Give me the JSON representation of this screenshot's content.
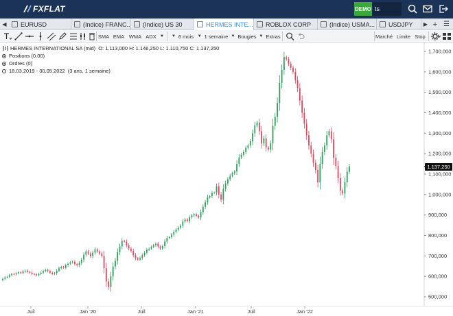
{
  "header": {
    "logo": "FXFLAT",
    "demo_badge": "DEMO",
    "search_value": "ts",
    "icons": [
      "search-icon",
      "mail-icon",
      "logout-icon"
    ]
  },
  "tabs": {
    "items": [
      {
        "label": "EURUSD",
        "active": false
      },
      {
        "label": "(Indice) FRANC...",
        "active": false
      },
      {
        "label": "(Indice) US 30",
        "active": false
      },
      {
        "label": "HERMES INTE...",
        "active": true
      },
      {
        "label": "ROBLOX CORP",
        "active": false
      },
      {
        "label": "(Indice) USMA...",
        "active": false
      },
      {
        "label": "USDJPY",
        "active": false
      }
    ],
    "nav_prev": "◀",
    "nav_next": "▶",
    "add": "+",
    "menu": "☰"
  },
  "toolbar": {
    "indicators": [
      "SMA",
      "EMA",
      "WMA",
      "ADX"
    ],
    "period": "6 mois",
    "interval": "1 semaine",
    "chart_type": "Bougies",
    "extras": "Extras",
    "orders": [
      "Marché",
      "Limite",
      "Stop"
    ]
  },
  "info": {
    "instrument": "HERMES INTERNATIONAL SA (mid)",
    "ohlc": "O: 1.113,000  H: 1.146,250  L: 1.110,750  C: 1.137,250",
    "positions": "Positions (0.00)",
    "orders": "Ordres (0)",
    "range": "18.03.2019 - 30.05.2022",
    "range_note": "(3 ans, 1 semaine)"
  },
  "current_price": "1.137,250",
  "colors": {
    "header_bg": "#1a3356",
    "demo_green": "#3aa83a",
    "active_tab": "#3d8fd6",
    "bull": "#2e9e5b",
    "bear": "#e0455f"
  },
  "chart_data": {
    "type": "candlestick",
    "x_start": "2019-03-18",
    "x_end": "2022-05-30",
    "interval": "1 semaine",
    "ylim": [
      500000,
      1700000
    ],
    "y_ticks": [
      "500,000",
      "600,000",
      "700,000",
      "800,000",
      "900,000",
      "1,000,000",
      "1,100,000",
      "1,200,000",
      "1,300,000",
      "1,400,000",
      "1,500,000",
      "1,600,000",
      "1,700,000"
    ],
    "x_ticks": [
      "Juil",
      "Jan '20",
      "Juil",
      "Jan '21",
      "Juil",
      "Jan '22"
    ],
    "closes": [
      588000,
      595000,
      598000,
      606000,
      612000,
      610000,
      615000,
      620000,
      616000,
      624000,
      628000,
      622000,
      618000,
      612000,
      610000,
      606000,
      612000,
      618000,
      626000,
      632000,
      626000,
      618000,
      612000,
      616000,
      628000,
      640000,
      646000,
      642000,
      654000,
      662000,
      668000,
      672000,
      660000,
      654000,
      666000,
      682000,
      706000,
      722000,
      712000,
      698000,
      716000,
      732000,
      722000,
      712000,
      700000,
      640000,
      575000,
      548000,
      600000,
      648000,
      676000,
      718000,
      746000,
      774000,
      770000,
      752000,
      736000,
      724000,
      704000,
      688000,
      682000,
      690000,
      704000,
      716000,
      730000,
      736000,
      744000,
      752000,
      760000,
      746000,
      736000,
      748000,
      770000,
      788000,
      792000,
      804000,
      818000,
      828000,
      838000,
      848000,
      868000,
      878000,
      870000,
      888000,
      898000,
      904000,
      896000,
      888000,
      914000,
      940000,
      962000,
      986000,
      992000,
      1008000,
      1010000,
      1040000,
      1000000,
      975000,
      1028000,
      1055000,
      1075000,
      1092000,
      1104000,
      1113000,
      1150000,
      1182000,
      1195000,
      1208000,
      1228000,
      1240000,
      1260000,
      1300000,
      1338000,
      1352000,
      1310000,
      1250000,
      1275000,
      1230000,
      1220000,
      1250000,
      1336000,
      1380000,
      1448000,
      1546000,
      1610000,
      1672000,
      1662000,
      1640000,
      1620000,
      1600000,
      1560000,
      1520000,
      1460000,
      1400000,
      1346000,
      1290000,
      1240000,
      1200000,
      1155000,
      1120000,
      1060000,
      1150000,
      1208000,
      1240000,
      1290000,
      1310000,
      1270000,
      1180000,
      1140000,
      1080000,
      1020000,
      1005000,
      1060000,
      1112000,
      1137250
    ]
  }
}
